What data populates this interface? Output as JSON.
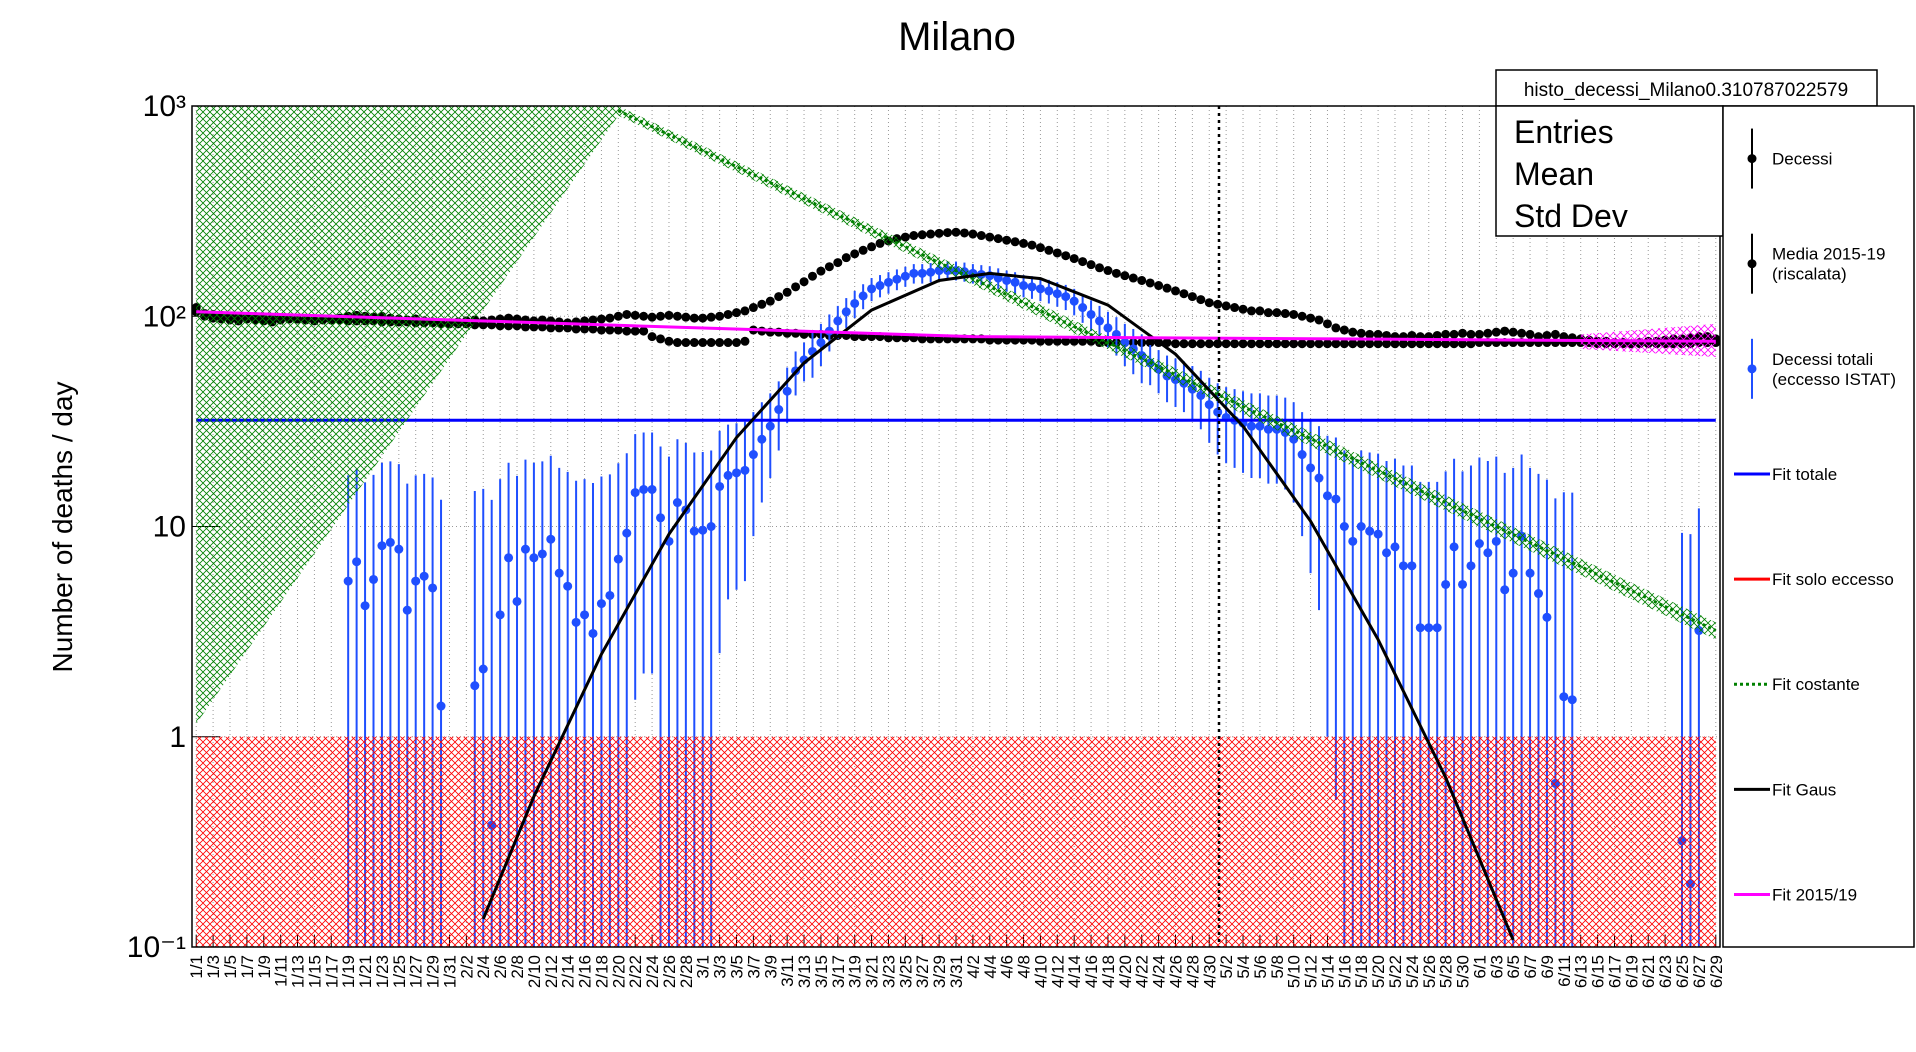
{
  "chart_data": {
    "type": "line",
    "title": "Milano",
    "y_label": "Number of deaths / day",
    "log_y": true,
    "grid": true,
    "ylim": [
      0.1,
      1000
    ],
    "yticks": [
      {
        "value": 0.1,
        "label": "10⁻¹"
      },
      1,
      10,
      {
        "value": 100,
        "label": "10²"
      },
      {
        "value": 1000,
        "label": "10³"
      }
    ],
    "stats": {
      "name": "histo_decessi_Milano0.310787022579",
      "labels": [
        "Entries",
        "Mean",
        "Std Dev"
      ]
    },
    "categories": [
      "1/1",
      null,
      "1/3",
      null,
      "1/5",
      null,
      "1/7",
      null,
      "1/9",
      null,
      "1/11",
      null,
      "1/13",
      null,
      "1/15",
      null,
      "1/17",
      null,
      "1/19",
      null,
      "1/21",
      null,
      "1/23",
      null,
      "1/25",
      null,
      "1/27",
      null,
      "1/29",
      null,
      "1/31",
      null,
      "2/2",
      null,
      "2/4",
      null,
      "2/6",
      null,
      "2/8",
      null,
      "2/10",
      null,
      "2/12",
      null,
      "2/14",
      null,
      "2/16",
      null,
      "2/18",
      null,
      "2/20",
      null,
      "2/22",
      null,
      "2/24",
      null,
      "2/26",
      null,
      "2/28",
      null,
      "3/1",
      null,
      "3/3",
      null,
      "3/5",
      null,
      "3/7",
      null,
      "3/9",
      null,
      "3/11",
      null,
      "3/13",
      null,
      "3/15",
      null,
      "3/17",
      null,
      "3/19",
      null,
      "3/21",
      null,
      "3/23",
      null,
      "3/25",
      null,
      "3/27",
      null,
      "3/29",
      null,
      "3/31",
      null,
      "4/2",
      null,
      "4/4",
      null,
      "4/6",
      null,
      "4/8",
      null,
      "4/10",
      null,
      "4/12",
      null,
      "4/14",
      null,
      "4/16",
      null,
      "4/18",
      null,
      "4/20",
      null,
      "4/22",
      null,
      "4/24",
      null,
      "4/26",
      null,
      "4/28",
      null,
      "4/30",
      null,
      "5/2",
      null,
      "5/4",
      null,
      "5/6",
      null,
      "5/8",
      null,
      "5/10",
      null,
      "5/12",
      null,
      "5/14",
      null,
      "5/16",
      null,
      "5/18",
      null,
      "5/20",
      null,
      "5/22",
      null,
      "5/24",
      null,
      "5/26",
      null,
      "5/28",
      null,
      "5/30",
      null,
      "6/1",
      null,
      "6/3",
      null,
      "6/5",
      null,
      "6/7",
      null,
      "6/9",
      null,
      "6/11",
      null,
      "6/13",
      null,
      "6/15",
      null,
      "6/17",
      null,
      "6/19",
      null,
      "6/21",
      null,
      "6/23",
      null,
      "6/25",
      null,
      "6/27",
      null,
      "6/29"
    ],
    "series": [
      {
        "name": "Decessi",
        "color": "#000000",
        "values": [
          110,
          100,
          98,
          97,
          96,
          95,
          97,
          96,
          95,
          94,
          96,
          98,
          97,
          96,
          95,
          97,
          96,
          98,
          100,
          101,
          100,
          99,
          100,
          98,
          97,
          96,
          97,
          95,
          94,
          93,
          92,
          94,
          95,
          96,
          95,
          96,
          97,
          98,
          97,
          96,
          95,
          96,
          95,
          94,
          93,
          94,
          95,
          96,
          97,
          98,
          100,
          102,
          101,
          100,
          99,
          100,
          101,
          100,
          99,
          98,
          98,
          99,
          100,
          102,
          104,
          106,
          110,
          114,
          118,
          124,
          130,
          138,
          146,
          155,
          164,
          172,
          180,
          190,
          198,
          206,
          214,
          222,
          228,
          234,
          238,
          242,
          244,
          246,
          248,
          250,
          251,
          249,
          246,
          242,
          238,
          234,
          230,
          226,
          222,
          218,
          212,
          206,
          200,
          194,
          188,
          182,
          176,
          170,
          165,
          160,
          156,
          152,
          148,
          144,
          140,
          136,
          132,
          128,
          124,
          120,
          116,
          114,
          112,
          110,
          108,
          106,
          106,
          104,
          104,
          103,
          102,
          100,
          98,
          96,
          92,
          88,
          86,
          84,
          83,
          82,
          82,
          81,
          80,
          80,
          81,
          80,
          80,
          81,
          82,
          82,
          83,
          82,
          82,
          83,
          84,
          85,
          84,
          83,
          82,
          80,
          81,
          82,
          80,
          79,
          78,
          77,
          76,
          76,
          75,
          75,
          74,
          75,
          76,
          76,
          77,
          78,
          78,
          79,
          80,
          80,
          78
        ]
      },
      {
        "name": "Media 2015-19\n(riscalata)",
        "color": "#000000",
        "values": [
          105,
          103,
          102,
          101,
          100,
          100,
          99,
          99,
          98,
          98,
          98,
          97,
          97,
          97,
          96,
          96,
          96,
          96,
          95,
          95,
          95,
          95,
          94,
          94,
          94,
          94,
          93,
          93,
          93,
          92,
          92,
          92,
          92,
          91,
          91,
          91,
          90,
          90,
          90,
          89,
          89,
          89,
          88,
          88,
          88,
          87,
          87,
          87,
          86,
          86,
          86,
          85,
          85,
          85,
          80,
          78,
          76,
          75,
          75,
          75,
          75,
          75,
          75,
          75,
          75,
          76,
          86,
          85,
          84,
          84,
          83,
          83,
          82,
          82,
          82,
          81,
          81,
          81,
          80,
          80,
          80,
          80,
          79,
          79,
          79,
          79,
          78,
          78,
          78,
          78,
          78,
          78,
          78,
          78,
          77,
          77,
          77,
          77,
          77,
          77,
          76,
          76,
          76,
          76,
          76,
          76,
          76,
          75,
          75,
          75,
          75,
          75,
          75,
          75,
          75,
          75,
          74,
          74,
          74,
          74,
          74,
          74,
          74,
          74,
          74,
          74,
          74,
          74,
          74,
          74,
          74,
          74,
          74,
          74,
          74,
          74,
          74,
          74,
          74,
          74,
          74,
          74,
          74,
          74,
          74,
          74,
          74,
          74,
          74,
          74,
          74,
          74,
          75,
          75,
          75,
          75,
          75,
          75,
          75,
          75,
          75,
          75,
          75,
          75,
          75,
          75,
          74,
          74,
          74,
          74,
          74,
          74,
          74,
          74,
          74,
          74,
          74,
          74,
          75,
          75,
          75
        ]
      },
      {
        "name": "Decessi totali\n(eccesso ISTAT)",
        "color": "#1f4fff",
        "values": [
          null,
          null,
          null,
          null,
          null,
          null,
          null,
          null,
          null,
          null,
          null,
          null,
          null,
          null,
          null,
          null,
          null,
          null,
          5.5,
          6.8,
          4.2,
          5.6,
          8.1,
          8.4,
          7.8,
          4.0,
          5.5,
          5.8,
          5.1,
          1.4,
          null,
          null,
          null,
          1.75,
          2.1,
          0.38,
          3.8,
          7.1,
          4.4,
          7.8,
          7.1,
          7.4,
          8.7,
          6.0,
          5.2,
          3.5,
          3.8,
          3.1,
          4.3,
          4.7,
          7.0,
          9.3,
          14.5,
          15,
          15,
          11,
          8.5,
          13,
          12,
          9.5,
          9.6,
          10,
          15.5,
          17.5,
          18,
          18.5,
          22,
          26,
          30,
          36,
          44,
          55,
          62,
          68,
          75,
          85,
          95,
          105,
          115,
          125,
          135,
          140,
          145,
          150,
          155,
          160,
          160,
          162,
          165,
          165,
          165,
          163,
          160,
          158,
          156,
          152,
          148,
          145,
          140,
          138,
          135,
          132,
          128,
          124,
          118,
          110,
          102,
          95,
          88,
          82,
          75,
          70,
          65,
          60,
          56,
          52,
          50,
          48,
          45,
          42,
          38,
          35,
          33,
          32,
          31,
          30,
          30,
          29,
          29,
          28,
          26,
          22,
          19,
          17,
          14,
          13.5,
          10,
          8.5,
          10,
          9.5,
          9.2,
          7.5,
          8.0,
          6.5,
          6.5,
          3.3,
          3.3,
          3.3,
          5.3,
          8.0,
          5.3,
          6.5,
          8.3,
          7.5,
          8.5,
          5.0,
          6.0,
          9.0,
          6.0,
          4.8,
          3.7,
          0.6,
          1.55,
          1.5,
          null,
          null,
          null,
          null,
          null,
          null,
          null,
          null,
          null,
          null,
          null,
          null,
          0.32,
          0.2,
          3.2,
          null,
          null
        ],
        "errors": [
          null,
          null,
          null,
          null,
          null,
          null,
          null,
          null,
          null,
          null,
          null,
          null,
          null,
          null,
          null,
          null,
          null,
          null,
          12,
          12,
          12,
          12,
          12,
          12,
          12,
          12,
          12,
          12,
          12,
          12,
          null,
          null,
          null,
          13,
          13,
          13,
          13,
          13,
          13,
          13,
          13,
          13,
          13,
          13,
          13,
          13,
          13,
          13,
          13,
          13,
          13,
          13,
          13,
          13,
          13,
          13,
          13,
          13,
          13,
          13,
          13,
          13,
          13,
          13,
          13,
          13,
          13,
          13,
          13,
          13,
          13,
          13,
          13,
          17,
          17,
          17,
          17,
          17,
          17,
          17,
          17,
          17,
          17,
          17,
          17,
          17,
          17,
          17,
          17,
          17,
          17,
          17,
          17,
          17,
          17,
          17,
          17,
          17,
          17,
          17,
          17,
          17,
          17,
          17,
          17,
          17,
          17,
          17,
          17,
          17,
          17,
          17,
          17,
          13,
          13,
          13,
          13,
          13,
          13,
          13,
          13,
          13,
          13,
          13,
          13,
          13,
          13,
          13,
          13,
          13,
          13,
          13,
          13,
          13,
          13,
          13,
          13,
          13,
          13,
          13,
          13,
          13,
          13,
          13,
          13,
          13,
          13,
          13,
          13,
          13,
          13,
          13,
          13,
          13,
          13,
          13,
          13,
          13,
          13,
          13,
          13,
          13,
          13,
          13,
          null,
          null,
          null,
          null,
          null,
          null,
          null,
          null,
          null,
          null,
          null,
          null,
          9,
          9,
          9,
          null,
          null
        ]
      },
      {
        "name": "Fit totale",
        "color": "#0000ff",
        "x": [
          "1/1",
          "6/29"
        ],
        "values": [
          32,
          32
        ]
      },
      {
        "name": "Fit solo eccesso",
        "color": "#ff0000",
        "band_x": [
          "1/1",
          "6/29"
        ],
        "band_lower": [
          0.1,
          0.1
        ],
        "band_upper": [
          1,
          1
        ]
      },
      {
        "name": "Fit costante",
        "color": "#008000",
        "dash": true,
        "x": [
          "2/20",
          "6/29"
        ],
        "values": [
          950,
          3.2
        ],
        "band_x": [
          "1/1",
          "2/20",
          "6/29"
        ],
        "band_lower": [
          1.15,
          900,
          2.9
        ],
        "band_upper": [
          1000,
          1000,
          3.5
        ]
      },
      {
        "name": "Fit Gaus",
        "color": "#000000",
        "x": [
          "2/4",
          "2/10",
          "2/18",
          "2/26",
          "3/5",
          "3/13",
          "3/21",
          "3/29",
          "4/4",
          "4/10",
          "4/18",
          "4/26",
          "5/4",
          "5/12",
          "5/20",
          "5/28",
          "6/5"
        ],
        "values": [
          0.136,
          0.52,
          2.47,
          9.2,
          26.5,
          60,
          107,
          148,
          160,
          151,
          113,
          66,
          30,
          10.6,
          2.9,
          0.64,
          0.108
        ]
      },
      {
        "name": "Fit 2015/19",
        "color": "#ff00ff",
        "x": [
          "1/1",
          "4/2",
          "6/29"
        ],
        "values": [
          105,
          80,
          76
        ],
        "band_x": [
          "6/13",
          "6/29"
        ],
        "band_lower": [
          70,
          64
        ],
        "band_upper": [
          82,
          92
        ]
      }
    ]
  }
}
